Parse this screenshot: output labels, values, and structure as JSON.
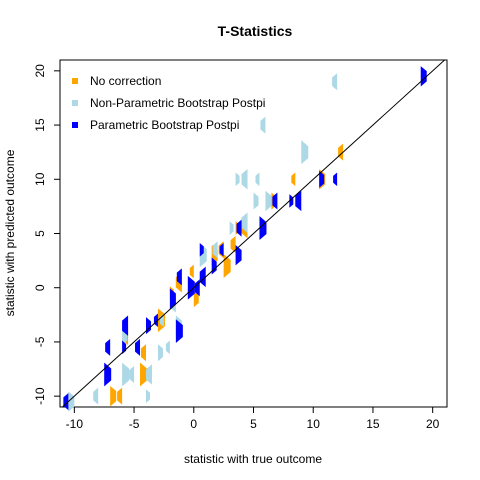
{
  "chart_data": {
    "type": "scatter",
    "title": "T-Statistics",
    "xlabel": "statistic with true outcome",
    "ylabel": "statistic with predicted outcome",
    "xlim": [
      -11.2,
      21.2
    ],
    "ylim": [
      -11.0,
      21.0
    ],
    "xticks": [
      -10,
      -5,
      0,
      5,
      10,
      15,
      20
    ],
    "yticks": [
      -10,
      -5,
      0,
      5,
      10,
      15,
      20
    ],
    "xtick_labels": [
      "-10",
      "-5",
      "0",
      "5",
      "10",
      "15",
      "20"
    ],
    "ytick_labels": [
      "-10",
      "-5",
      "0",
      "5",
      "10",
      "15",
      "20"
    ],
    "grid": false,
    "legend_position": "top-left",
    "reference_line": {
      "type": "identity",
      "slope": 1,
      "intercept": 0,
      "color": "#000000"
    },
    "series": [
      {
        "name": "No correction",
        "color": "#FFA500",
        "marker": "half-hexagon",
        "points": [
          [
            -7.0,
            -8.0
          ],
          [
            -7.0,
            -10.0
          ],
          [
            -4.0,
            -6.0
          ],
          [
            -3.0,
            -3.0
          ],
          [
            -5.5,
            -4.5
          ],
          [
            -2.0,
            -0.5
          ],
          [
            -1.0,
            0.5
          ],
          [
            0.0,
            -1.0
          ],
          [
            0.0,
            1.5
          ],
          [
            1.5,
            3.0
          ],
          [
            2.5,
            3.5
          ],
          [
            2.5,
            2.0
          ],
          [
            3.5,
            4.0
          ],
          [
            3.5,
            5.5
          ],
          [
            4.5,
            5.5
          ],
          [
            6.5,
            8.0
          ],
          [
            8.5,
            10.0
          ],
          [
            10.5,
            10.0
          ],
          [
            12.5,
            12.5
          ],
          [
            -4.5,
            -8.0
          ],
          [
            -6.0,
            -10.0
          ]
        ]
      },
      {
        "name": "Non-Parametric Bootstrap Postpi",
        "color": "#ADD8E6",
        "marker": "half-hexagon",
        "points": [
          [
            -10.5,
            -10.5
          ],
          [
            -8.0,
            -10.0
          ],
          [
            -6.0,
            -8.0
          ],
          [
            -5.0,
            -8.0
          ],
          [
            -4.0,
            -10.0
          ],
          [
            -3.5,
            -8.0
          ],
          [
            -3.0,
            -6.0
          ],
          [
            -2.0,
            -5.5
          ],
          [
            -1.5,
            -3.5
          ],
          [
            -1.5,
            -1.5
          ],
          [
            0.5,
            3.0
          ],
          [
            2.0,
            3.5
          ],
          [
            3.0,
            5.5
          ],
          [
            4.5,
            6.0
          ],
          [
            5.0,
            8.0
          ],
          [
            5.5,
            10.0
          ],
          [
            6.0,
            8.0
          ],
          [
            6.0,
            15.0
          ],
          [
            9.0,
            12.5
          ],
          [
            12.0,
            19.0
          ],
          [
            3.5,
            10.0
          ],
          [
            4.5,
            10.0
          ],
          [
            -6.0,
            -4.5
          ],
          [
            -2.5,
            -3.0
          ]
        ]
      },
      {
        "name": "Parametric Bootstrap Postpi",
        "color": "#0000FF",
        "marker": "half-hexagon",
        "points": [
          [
            -10.5,
            -10.5
          ],
          [
            -7.5,
            -8.0
          ],
          [
            -7.0,
            -5.5
          ],
          [
            -6.0,
            -5.5
          ],
          [
            -5.5,
            -3.5
          ],
          [
            -4.0,
            -3.5
          ],
          [
            -3.0,
            -3.0
          ],
          [
            -2.0,
            -1.0
          ],
          [
            -1.0,
            1.0
          ],
          [
            -0.5,
            0.0
          ],
          [
            0.5,
            0.0
          ],
          [
            0.5,
            3.5
          ],
          [
            1.0,
            1.0
          ],
          [
            1.5,
            2.0
          ],
          [
            2.5,
            3.5
          ],
          [
            3.5,
            3.0
          ],
          [
            4.0,
            5.5
          ],
          [
            5.5,
            5.5
          ],
          [
            7.0,
            8.0
          ],
          [
            8.0,
            8.0
          ],
          [
            9.0,
            8.0
          ],
          [
            10.5,
            10.0
          ],
          [
            12.0,
            10.0
          ],
          [
            19.0,
            19.5
          ],
          [
            -4.5,
            -5.5
          ],
          [
            -1.5,
            -4.0
          ]
        ]
      }
    ]
  }
}
